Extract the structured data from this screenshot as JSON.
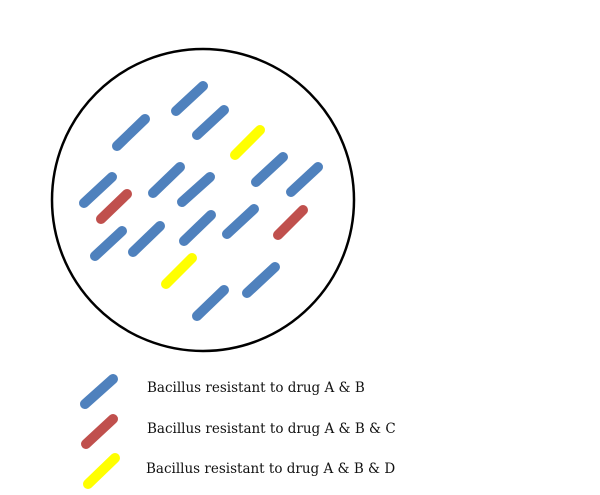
{
  "legend": {
    "items": [
      {
        "key": "blue",
        "label": "Bacillus resistant to drug A & B",
        "color": "#4f81bd"
      },
      {
        "key": "red",
        "label": "Bacillus resistant to drug A & B & C",
        "color": "#c0504d"
      },
      {
        "key": "yellow",
        "label": "Bacillus resistant to drug A & B & D",
        "color": "#ffff00"
      }
    ]
  },
  "dish": {
    "bacteria_counts": {
      "blue": 14,
      "red": 2,
      "yellow": 2
    }
  }
}
